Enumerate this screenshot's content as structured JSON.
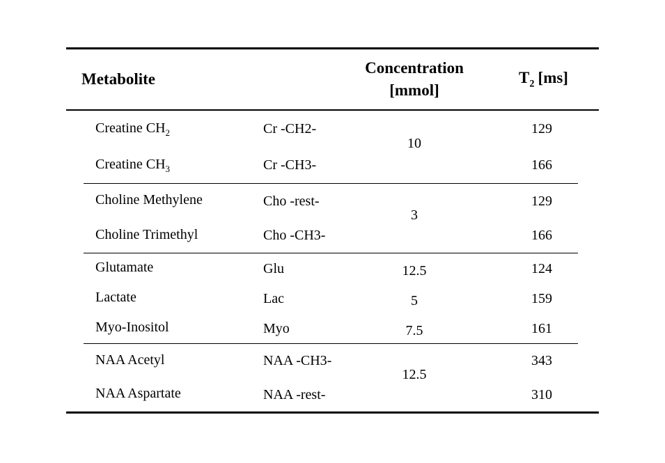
{
  "table": {
    "header": {
      "metabolite": "Metabolite",
      "concentration_line1": "Concentration",
      "concentration_line2": "[mmol]",
      "t2_base": "T",
      "t2_sub": "2",
      "t2_unit": "[ms]"
    },
    "groups": [
      {
        "concentration": "10",
        "rows": [
          {
            "name_base": "Creatine CH",
            "name_sub": "2",
            "abbr": "Cr -CH2-",
            "t2": "129"
          },
          {
            "name_base": "Creatine CH",
            "name_sub": "3",
            "abbr": "Cr -CH3-",
            "t2": "166"
          }
        ]
      },
      {
        "concentration": "3",
        "rows": [
          {
            "name_base": "Choline Methylene",
            "name_sub": "",
            "abbr": "Cho -rest-",
            "t2": "129"
          },
          {
            "name_base": "Choline Trimethyl",
            "name_sub": "",
            "abbr": "Cho -CH3-",
            "t2": "166"
          }
        ]
      },
      {
        "rows": [
          {
            "name_base": "Glutamate",
            "name_sub": "",
            "abbr": "Glu",
            "conc": "12.5",
            "t2": "124"
          },
          {
            "name_base": "Lactate",
            "name_sub": "",
            "abbr": "Lac",
            "conc": "5",
            "t2": "159"
          },
          {
            "name_base": "Myo-Inositol",
            "name_sub": "",
            "abbr": "Myo",
            "conc": "7.5",
            "t2": "161"
          }
        ]
      },
      {
        "concentration": "12.5",
        "rows": [
          {
            "name_base": "NAA Acetyl",
            "name_sub": "",
            "abbr": "NAA -CH3-",
            "t2": "343"
          },
          {
            "name_base": "NAA Aspartate",
            "name_sub": "",
            "abbr": "NAA -rest-",
            "t2": "310"
          }
        ]
      }
    ]
  }
}
